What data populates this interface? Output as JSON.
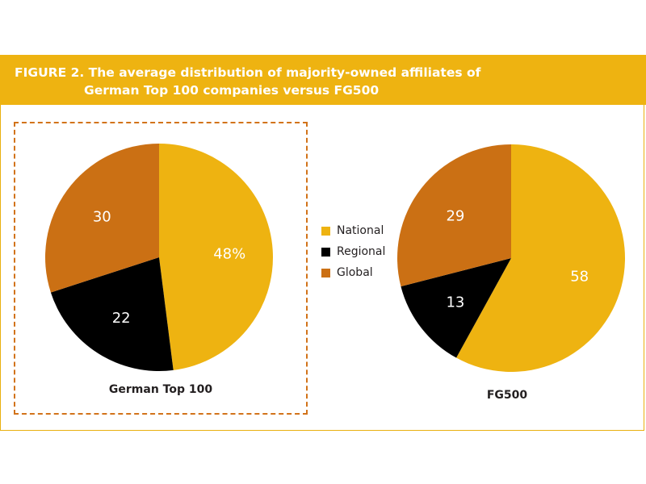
{
  "title": {
    "prefix": "FIGURE  2.",
    "line1": "The average distribution of majority-owned affiliates of",
    "line2": "German Top 100 companies versus FG500"
  },
  "legend": [
    {
      "label": "National",
      "color": "#eeb311"
    },
    {
      "label": "Regional",
      "color": "#000000"
    },
    {
      "label": "Global",
      "color": "#cb7014"
    }
  ],
  "chart_data": [
    {
      "type": "pie",
      "title": "German Top 100",
      "categories": [
        "National",
        "Regional",
        "Global"
      ],
      "values": [
        48,
        22,
        30
      ],
      "labels": [
        "48%",
        "22",
        "30"
      ],
      "colors": [
        "#eeb311",
        "#000000",
        "#cb7014"
      ]
    },
    {
      "type": "pie",
      "title": "FG500",
      "categories": [
        "National",
        "Regional",
        "Global"
      ],
      "values": [
        58,
        13,
        29
      ],
      "labels": [
        "58",
        "13",
        "29"
      ],
      "colors": [
        "#eeb311",
        "#000000",
        "#cb7014"
      ]
    }
  ]
}
